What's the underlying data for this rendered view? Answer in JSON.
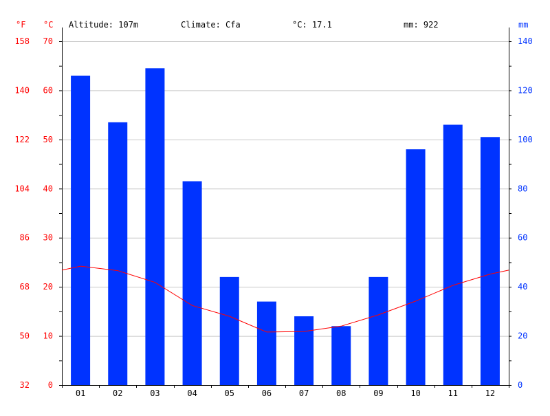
{
  "header": {
    "altitude": "Altitude: 107m",
    "climate": "Climate: Cfa",
    "temp_avg": "°C: 17.1",
    "precip_total": "mm: 922"
  },
  "axes": {
    "left_unit_f": "°F",
    "left_unit_c": "°C",
    "right_unit": "mm"
  },
  "colors": {
    "temperature": "#ff0000",
    "precipitation": "#0033ff",
    "grid": "#c8c8c8",
    "axis": "#000000"
  },
  "chart_data": {
    "type": "bar",
    "categories": [
      "01",
      "02",
      "03",
      "04",
      "05",
      "06",
      "07",
      "08",
      "09",
      "10",
      "11",
      "12"
    ],
    "series": [
      {
        "name": "mm",
        "type": "bar",
        "axis": "right",
        "values": [
          126,
          107,
          129,
          83,
          44,
          34,
          28,
          24,
          44,
          96,
          106,
          101
        ]
      },
      {
        "name": "°C",
        "type": "line",
        "axis": "left",
        "values": [
          24.2,
          23.3,
          20.9,
          16.2,
          14.0,
          10.8,
          10.9,
          12.0,
          14.3,
          17.1,
          20.3,
          22.6
        ]
      }
    ],
    "y_left": {
      "label": "°C",
      "min": 0,
      "max": 70,
      "ticks": [
        0,
        10,
        20,
        30,
        40,
        50,
        60,
        70
      ]
    },
    "y_left_f": {
      "label": "°F",
      "ticks": [
        32,
        50,
        68,
        86,
        104,
        122,
        140,
        158
      ]
    },
    "y_right": {
      "label": "mm",
      "min": 0,
      "max": 140,
      "ticks": [
        0,
        20,
        40,
        60,
        80,
        100,
        120,
        140
      ]
    },
    "grid": true
  }
}
